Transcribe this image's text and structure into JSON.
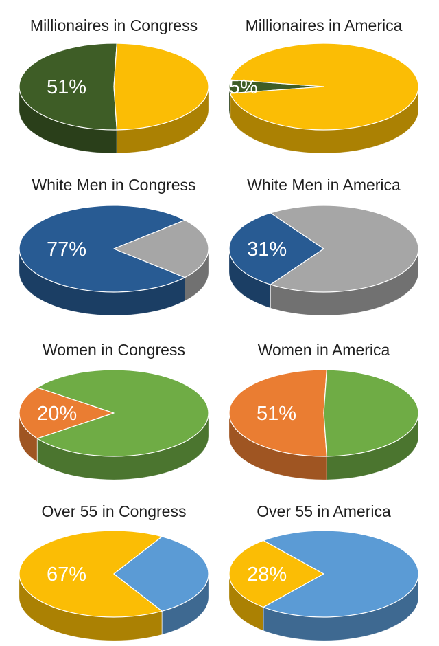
{
  "chart_data": [
    {
      "type": "pie",
      "title": "Millionaires in Congress",
      "slices": [
        {
          "value": 51,
          "label": "51%",
          "color": "#3e5d26"
        },
        {
          "value": 49,
          "label": "",
          "color": "#fbbd05"
        }
      ]
    },
    {
      "type": "pie",
      "title": "Millionaires in America",
      "slices": [
        {
          "value": 5,
          "label": "5%",
          "color": "#3e5d26"
        },
        {
          "value": 95,
          "label": "",
          "color": "#fbbd05"
        }
      ]
    },
    {
      "type": "pie",
      "title": "White Men in Congress",
      "slices": [
        {
          "value": 77,
          "label": "77%",
          "color": "#285b93"
        },
        {
          "value": 23,
          "label": "",
          "color": "#a6a6a6"
        }
      ]
    },
    {
      "type": "pie",
      "title": "White Men in America",
      "slices": [
        {
          "value": 31,
          "label": "31%",
          "color": "#285b93"
        },
        {
          "value": 69,
          "label": "",
          "color": "#a6a6a6"
        }
      ]
    },
    {
      "type": "pie",
      "title": "Women in Congress",
      "slices": [
        {
          "value": 20,
          "label": "20%",
          "color": "#ea7d32"
        },
        {
          "value": 80,
          "label": "",
          "color": "#6fac45"
        }
      ]
    },
    {
      "type": "pie",
      "title": "Women in America",
      "slices": [
        {
          "value": 51,
          "label": "51%",
          "color": "#ea7d32"
        },
        {
          "value": 49,
          "label": "",
          "color": "#6fac45"
        }
      ]
    },
    {
      "type": "pie",
      "title": "Over 55 in Congress",
      "slices": [
        {
          "value": 67,
          "label": "67%",
          "color": "#fbbd05"
        },
        {
          "value": 33,
          "label": "",
          "color": "#5b9bd5"
        }
      ]
    },
    {
      "type": "pie",
      "title": "Over 55 in America",
      "slices": [
        {
          "value": 28,
          "label": "28%",
          "color": "#fbbd05"
        },
        {
          "value": 72,
          "label": "",
          "color": "#5b9bd5"
        }
      ]
    }
  ]
}
